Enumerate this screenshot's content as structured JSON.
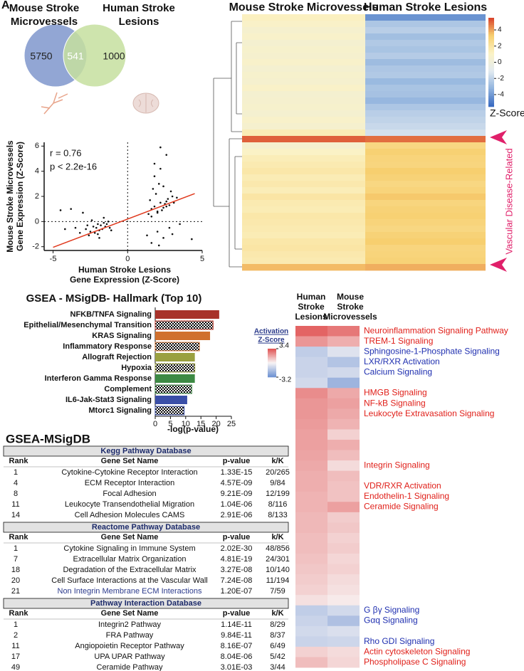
{
  "panel_label": "A",
  "venn": {
    "sets": [
      {
        "name_lines": [
          "Mouse Stroke",
          "Microvessels"
        ],
        "color": "#7f97cc"
      },
      {
        "name_lines": [
          "Human Stroke",
          "Lesions"
        ],
        "color": "#c6df9f"
      }
    ],
    "counts": {
      "mouse_only": 5750,
      "both": 541,
      "human_only": 1000
    }
  },
  "chart_data": [
    {
      "type": "scatter",
      "color": "#111111",
      "annotations": [
        "r = 0.76",
        "p < 2.2e-16"
      ],
      "ylabel_lines": [
        "Mouse Stroke Microvessels",
        "Gene Expression (Z-Score)"
      ],
      "xlabel_lines": [
        "Human Stroke Lesions",
        "Gene Expression (Z-Score)"
      ],
      "xlim": [
        -5.6,
        5
      ],
      "ylim": [
        -2.3,
        6.3
      ],
      "xticks": [
        -5,
        0,
        5
      ],
      "yticks": [
        -2,
        0,
        2,
        4,
        6
      ],
      "fit": {
        "slope": 0.45,
        "intercept": 0.2,
        "color": "#e03a1e"
      },
      "x": [
        -3.2,
        -2.8,
        -2.5,
        -2.3,
        -2.1,
        -2.0,
        -1.9,
        -1.8,
        -1.7,
        -1.6,
        -1.5,
        -1.4,
        -1.3,
        -2.6,
        -2.2,
        -1.9,
        -1.6,
        -1.2,
        -3.5,
        -2.4,
        -4.5,
        -3.8,
        -3.0,
        -4.2,
        -2.0,
        -1.1,
        -2.7,
        1.4,
        1.6,
        1.8,
        2.0,
        2.2,
        2.4,
        2.6,
        2.8,
        3.0,
        1.5,
        1.9,
        2.3,
        2.7,
        1.7,
        2.1,
        2.5,
        2.9,
        3.3,
        1.6,
        2.0,
        2.4,
        1.8,
        2.2,
        2.6,
        3.1,
        2.2,
        2.6,
        1.8,
        2.0,
        2.4,
        1.6,
        3.0,
        2.8,
        1.3,
        3.5,
        4.3,
        2.1
      ],
      "y": [
        -0.9,
        -0.6,
        -0.8,
        -0.4,
        -0.5,
        -0.2,
        -0.7,
        -0.3,
        -0.6,
        -0.1,
        -0.4,
        -0.2,
        0.0,
        -1.1,
        -0.9,
        -1.3,
        0.3,
        -0.5,
        -0.5,
        0.1,
        0.9,
        1.0,
        0.7,
        -0.6,
        -1.0,
        -0.7,
        -0.3,
        0.6,
        1.0,
        1.2,
        0.8,
        1.5,
        1.1,
        1.6,
        1.3,
        2.0,
        1.7,
        2.2,
        0.9,
        1.8,
        2.6,
        3.0,
        1.4,
        2.4,
        1.9,
        0.4,
        0.7,
        2.8,
        3.6,
        4.2,
        1.2,
        1.5,
        5.9,
        5.3,
        4.6,
        -0.8,
        -1.3,
        -1.7,
        -1.0,
        -0.5,
        -1.1,
        -0.2,
        -1.4,
        -1.9
      ]
    },
    {
      "type": "bar",
      "orientation": "horizontal",
      "title": "GSEA - MSigDB- Hallmark (Top 10)",
      "categories": [
        "NFKB/TNFA Signaling",
        "Epithelial/Mesenchymal Transition",
        "KRAS Signaling",
        "Inflammatory Response",
        "Allograft Rejection",
        "Hypoxia",
        "Interferon Gamma Response",
        "Complement",
        "IL6-Jak-Stat3 Signaling",
        "Mtorc1 Signaling"
      ],
      "values": [
        21,
        19,
        18,
        14.5,
        13,
        13,
        13,
        12,
        10.5,
        9.5
      ],
      "colors": [
        "#a8322a",
        "#c23a2c",
        "#d0702e",
        "#d0702e",
        "#9aa040",
        "#9aa040",
        "#3d8a44",
        "#3d8a44",
        "#3a4fa8",
        "#3a4fa8"
      ],
      "patterns": [
        "solid",
        "checker",
        "solid",
        "checker",
        "solid",
        "checker",
        "solid",
        "checker",
        "solid",
        "checker"
      ],
      "xlabel": "-log(p-value)",
      "xlim": [
        0,
        25
      ],
      "xticks": [
        0,
        5,
        10,
        15,
        20,
        25
      ]
    }
  ],
  "heatmap": {
    "columns": [
      "Mouse Stroke Microvessels",
      "Human Stroke Lesions"
    ],
    "series": [
      {
        "values": [
          1.2,
          0.9,
          0.6,
          0.8,
          0.5,
          0.7,
          0.6,
          0.8,
          0.5,
          0.7,
          0.6,
          0.9,
          0.5,
          0.6,
          0.7,
          0.5,
          0.8,
          0.6,
          1.5,
          5.0,
          0.6,
          1.0,
          1.4,
          1.6,
          1.8,
          1.5,
          1.7,
          1.4,
          1.9,
          1.6,
          1.5,
          1.8,
          1.7,
          1.6,
          1.5,
          1.8,
          1.9,
          1.7,
          1.6,
          3.6
        ]
      },
      {
        "values": [
          -4.2,
          -2.5,
          -2.2,
          -2.8,
          -2.4,
          -2.6,
          -2.3,
          -2.9,
          -2.5,
          -2.4,
          -3.0,
          -2.6,
          -2.7,
          -3.1,
          -2.5,
          -2.2,
          -2.0,
          -1.8,
          -1.5,
          4.8,
          2.8,
          3.2,
          3.0,
          2.9,
          3.3,
          3.1,
          2.8,
          3.0,
          3.4,
          2.9,
          3.1,
          3.2,
          3.0,
          2.8,
          3.1,
          3.3,
          2.9,
          3.0,
          3.1,
          3.8
        ]
      }
    ],
    "clim": [
      -5.5,
      5.5
    ],
    "colors": [
      "#3567c0",
      "#8fb2dd",
      "#e2eaf0",
      "#fbf2c4",
      "#f7cf6f",
      "#d8402a"
    ],
    "colorbar_ticks": [
      4,
      2,
      0,
      -2,
      -4
    ],
    "colorbar_title": "Z-Score",
    "annotation": "Vascular Disease-Related",
    "annotation_color": "#e0206a"
  },
  "ipa_heatmap": {
    "column_lines": [
      [
        "Human",
        "Stroke",
        "Lesions"
      ],
      [
        "Mouse",
        "Stroke",
        "Microvessels"
      ]
    ],
    "colorbar_title_lines": [
      "Activation",
      "Z-Score"
    ],
    "clim": [
      -3.2,
      3.4
    ],
    "colorbar_ticks": [
      3.4,
      -3.2
    ],
    "colors": [
      "#6a90d2",
      "#f8f4f4",
      "#e05050"
    ],
    "rows": [
      {
        "label": "Neuroinflammation Signaling Pathway",
        "color": "#e0201a",
        "values": [
          3.0,
          2.6
        ]
      },
      {
        "label": "TREM-1 Signaling",
        "color": "#e0201a",
        "values": [
          2.0,
          1.5
        ]
      },
      {
        "label": "Sphingosine-1-Phosphate Signaling",
        "color": "#2030b0",
        "values": [
          -1.2,
          -0.5
        ]
      },
      {
        "label": "LXR/RXR Activation",
        "color": "#2030b0",
        "values": [
          -1.0,
          -1.5
        ]
      },
      {
        "label": "Calcium Signaling",
        "color": "#2030b0",
        "values": [
          -1.0,
          -0.8
        ]
      },
      {
        "values": [
          -0.8,
          -2.0
        ]
      },
      {
        "label": "HMGB Signaling",
        "color": "#e0201a",
        "values": [
          2.2,
          1.6
        ]
      },
      {
        "label": "NF-kB Signaling",
        "color": "#e0201a",
        "values": [
          2.0,
          1.8
        ]
      },
      {
        "label": "Leukocyte Extravasation Signaling",
        "color": "#e0201a",
        "values": [
          2.0,
          1.6
        ]
      },
      {
        "values": [
          1.9,
          1.4
        ]
      },
      {
        "values": [
          1.8,
          0.8
        ]
      },
      {
        "values": [
          1.8,
          1.5
        ]
      },
      {
        "values": [
          1.7,
          1.2
        ]
      },
      {
        "label": "Integrin Signaling",
        "color": "#e0201a",
        "values": [
          1.6,
          0.6
        ]
      },
      {
        "values": [
          1.5,
          1.2
        ]
      },
      {
        "label": "VDR/RXR Activation",
        "color": "#e0201a",
        "values": [
          1.5,
          1.1
        ]
      },
      {
        "label": "Endothelin-1 Signaling",
        "color": "#e0201a",
        "values": [
          1.4,
          1.1
        ]
      },
      {
        "label": "Ceramide Signaling",
        "color": "#e0201a",
        "values": [
          1.4,
          1.8
        ]
      },
      {
        "values": [
          1.3,
          0.9
        ]
      },
      {
        "values": [
          1.3,
          1.0
        ]
      },
      {
        "values": [
          1.2,
          0.8
        ]
      },
      {
        "values": [
          1.2,
          0.9
        ]
      },
      {
        "values": [
          1.1,
          0.7
        ]
      },
      {
        "values": [
          1.0,
          0.8
        ]
      },
      {
        "values": [
          0.9,
          0.6
        ]
      },
      {
        "values": [
          0.8,
          0.5
        ]
      },
      {
        "values": [
          0.5,
          0.3
        ]
      },
      {
        "label": "G βγ Signaling",
        "color": "#2030b0",
        "values": [
          -1.2,
          -0.8
        ]
      },
      {
        "label": "Gαq Signaling",
        "color": "#2030b0",
        "values": [
          -1.0,
          -1.6
        ]
      },
      {
        "values": [
          -0.8,
          -0.6
        ]
      },
      {
        "label": "Rho GDI Signaling",
        "color": "#2030b0",
        "values": [
          -1.0,
          -0.9
        ]
      },
      {
        "label": "Actin cytoskeleton Signaling",
        "color": "#e0201a",
        "values": [
          0.8,
          0.6
        ]
      },
      {
        "label": "Phospholipase C Signaling",
        "color": "#e0201a",
        "values": [
          1.2,
          0.7
        ]
      }
    ]
  },
  "table": {
    "title": "GSEA-MSigDB",
    "header": [
      "Rank",
      "Gene Set Name",
      "p-value",
      "k/K"
    ],
    "sections": [
      {
        "name": "Kegg Pathway Database",
        "rows": [
          [
            1,
            "Cytokine-Cytokine Receptor Interaction",
            "1.33E-15",
            "20/265"
          ],
          [
            4,
            "ECM Receptor Interaction",
            "4.57E-09",
            "9/84"
          ],
          [
            8,
            "Focal Adhesion",
            "9.21E-09",
            "12/199"
          ],
          [
            11,
            "Leukocyte Transendothelial Migration",
            "1.04E-06",
            "8/116"
          ],
          [
            14,
            "Cell Adhesion Molecules CAMS",
            "2.91E-06",
            "8/133"
          ]
        ]
      },
      {
        "name": "Reactome Pathway Database",
        "highlight": {
          "row": 4,
          "color": "#2b3a8c"
        },
        "rows": [
          [
            1,
            "Cytokine Signaling in Immune System",
            "2.02E-30",
            "48/856"
          ],
          [
            7,
            "Extracellular Matrix Organization",
            "4.81E-19",
            "24/301"
          ],
          [
            18,
            "Degradation of the Extracellular Matrix",
            "3.27E-08",
            "10/140"
          ],
          [
            20,
            "Cell Surface Interactions at the Vascular Wall",
            "7.24E-08",
            "11/194"
          ],
          [
            21,
            "Non Integrin Membrane ECM Interactions",
            "1.20E-07",
            "7/59"
          ]
        ]
      },
      {
        "name": "Pathway Interaction Database",
        "rows": [
          [
            1,
            "Integrin2 Pathway",
            "1.14E-11",
            "8/29"
          ],
          [
            2,
            "FRA Pathway",
            "9.84E-11",
            "8/37"
          ],
          [
            11,
            "Angiopoietin Receptor Pathway",
            "8.16E-07",
            "6/49"
          ],
          [
            17,
            "UPA UPAR Pathway",
            "8.04E-06",
            "5/42"
          ],
          [
            49,
            "Ceramide Pathway",
            "3.01E-03",
            "3/44"
          ]
        ]
      }
    ]
  }
}
